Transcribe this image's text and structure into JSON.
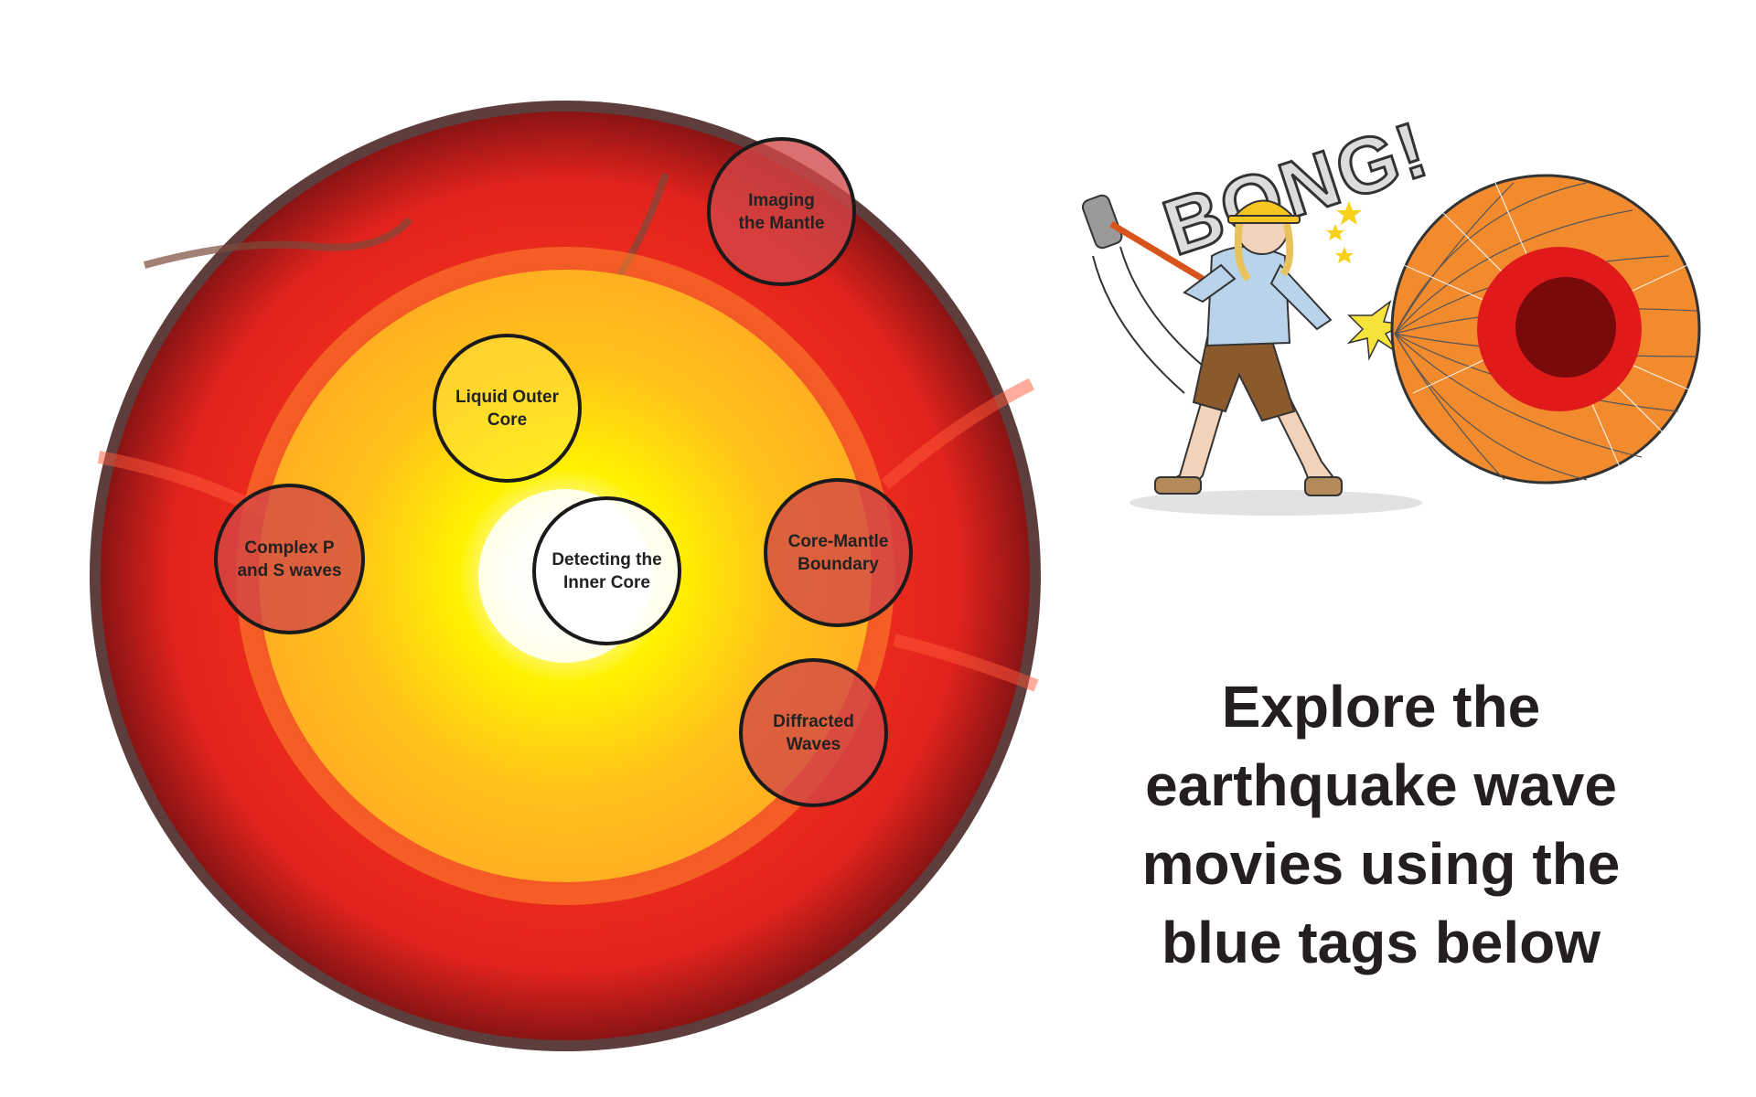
{
  "tags": {
    "mantle": "Imaging\nthe Mantle",
    "outer_core": "Liquid Outer\nCore",
    "complex_waves": "Complex P\nand S waves",
    "inner_core": "Detecting the\nInner Core",
    "cmb": "Core-Mantle\nBoundary",
    "diffracted": "Diffracted\nWaves"
  },
  "illustration": {
    "sound_effect": "BONG!"
  },
  "headline": "Explore the\nearthquake wave\nmovies using the\nblue tags below",
  "colors": {
    "mantle_red": "#e8251f",
    "crust_dark": "#6b0f0f",
    "outer_core_yellow": "#ffd11a",
    "inner_core_white": "#ffffff",
    "earth_orange": "#f28a2e"
  }
}
